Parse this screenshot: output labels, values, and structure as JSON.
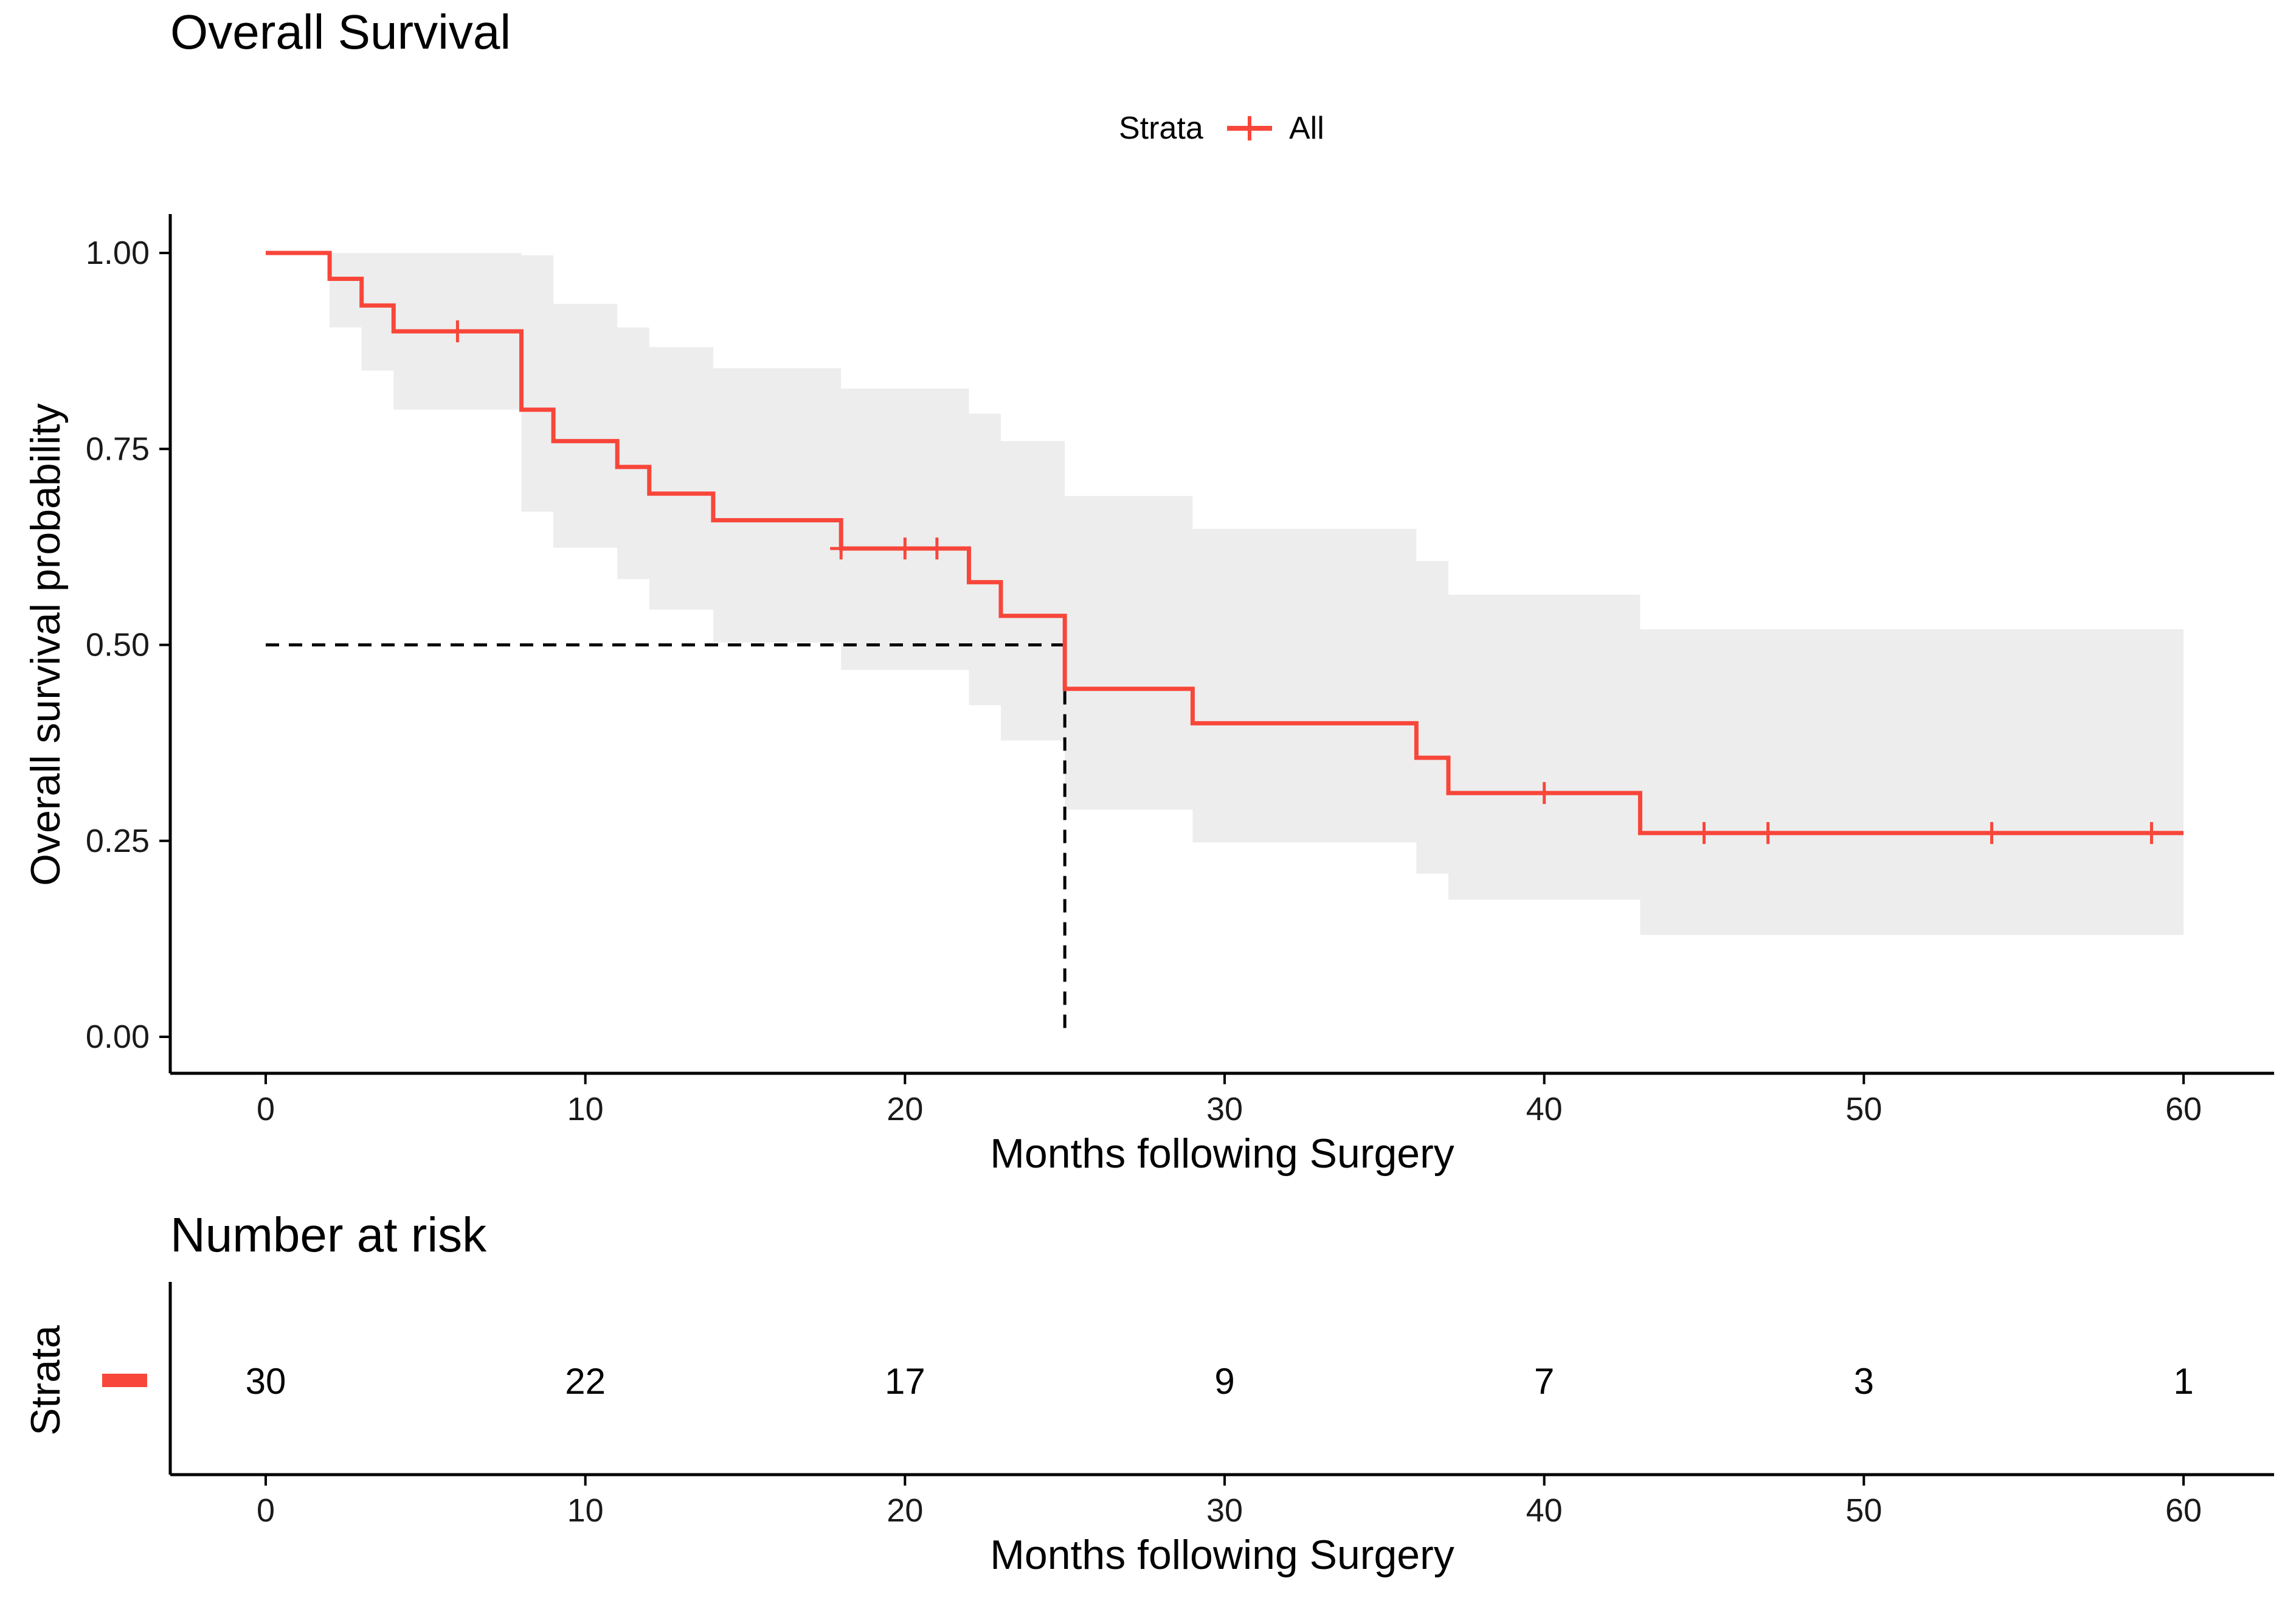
{
  "chart_data": [
    {
      "type": "line",
      "subtype": "kaplan-meier",
      "title": "Overall Survival",
      "xlabel": "Months following Surgery",
      "ylabel": "Overall survival probability",
      "xlim": [
        0,
        60
      ],
      "ylim": [
        0,
        1
      ],
      "xticks": [
        0,
        10,
        20,
        30,
        40,
        50,
        60
      ],
      "xtick_labels": [
        "0",
        "10",
        "20",
        "30",
        "40",
        "50",
        "60"
      ],
      "yticks": [
        0,
        0.25,
        0.5,
        0.75,
        1
      ],
      "ytick_labels": [
        "0.00",
        "0.25",
        "0.50",
        "0.75",
        "1.00"
      ],
      "legend": {
        "title": "Strata",
        "position": "top",
        "entries": [
          {
            "name": "All",
            "color": "#f8463a"
          }
        ]
      },
      "series": [
        {
          "name": "All",
          "color": "#f8463a",
          "steps": [
            [
              0,
              1.0
            ],
            [
              2,
              0.967
            ],
            [
              3,
              0.933
            ],
            [
              4,
              0.9
            ],
            [
              8,
              0.8
            ],
            [
              9,
              0.76
            ],
            [
              11,
              0.727
            ],
            [
              12,
              0.693
            ],
            [
              14,
              0.659
            ],
            [
              18,
              0.623
            ],
            [
              22,
              0.58
            ],
            [
              23,
              0.537
            ],
            [
              25,
              0.444
            ],
            [
              29,
              0.4
            ],
            [
              36,
              0.356
            ],
            [
              37,
              0.311
            ],
            [
              43,
              0.26
            ],
            [
              60,
              0.26
            ]
          ],
          "ci": [
            [
              0,
              1.0,
              1.0
            ],
            [
              2,
              0.905,
              1.0
            ],
            [
              3,
              0.85,
              1.0
            ],
            [
              4,
              0.8,
              1.0
            ],
            [
              8,
              0.67,
              0.997
            ],
            [
              9,
              0.624,
              0.935
            ],
            [
              11,
              0.584,
              0.905
            ],
            [
              12,
              0.545,
              0.88
            ],
            [
              14,
              0.503,
              0.853
            ],
            [
              18,
              0.468,
              0.827
            ],
            [
              22,
              0.423,
              0.795
            ],
            [
              23,
              0.378,
              0.76
            ],
            [
              25,
              0.29,
              0.69
            ],
            [
              29,
              0.248,
              0.648
            ],
            [
              36,
              0.208,
              0.607
            ],
            [
              37,
              0.175,
              0.564
            ],
            [
              43,
              0.13,
              0.52
            ],
            [
              60,
              0.13,
              0.52
            ]
          ],
          "censor": [
            [
              6,
              0.9
            ],
            [
              18,
              0.623
            ],
            [
              20,
              0.623
            ],
            [
              21,
              0.623
            ],
            [
              40,
              0.311
            ],
            [
              45,
              0.26
            ],
            [
              47,
              0.26
            ],
            [
              54,
              0.26
            ],
            [
              59,
              0.26
            ]
          ]
        }
      ],
      "median": {
        "x": 25,
        "y": 0.5
      }
    },
    {
      "type": "table",
      "title": "Number at risk",
      "xlabel": "Months following Surgery",
      "ylabel": "Strata",
      "xlim": [
        0,
        60
      ],
      "xticks": [
        0,
        10,
        20,
        30,
        40,
        50,
        60
      ],
      "xtick_labels": [
        "0",
        "10",
        "20",
        "30",
        "40",
        "50",
        "60"
      ],
      "rows": [
        {
          "strata": "All",
          "color": "#f8463a",
          "values": [
            30,
            22,
            17,
            9,
            7,
            3,
            1
          ],
          "labels": [
            "30",
            "22",
            "17",
            "9",
            "7",
            "3",
            "1"
          ]
        }
      ]
    }
  ]
}
